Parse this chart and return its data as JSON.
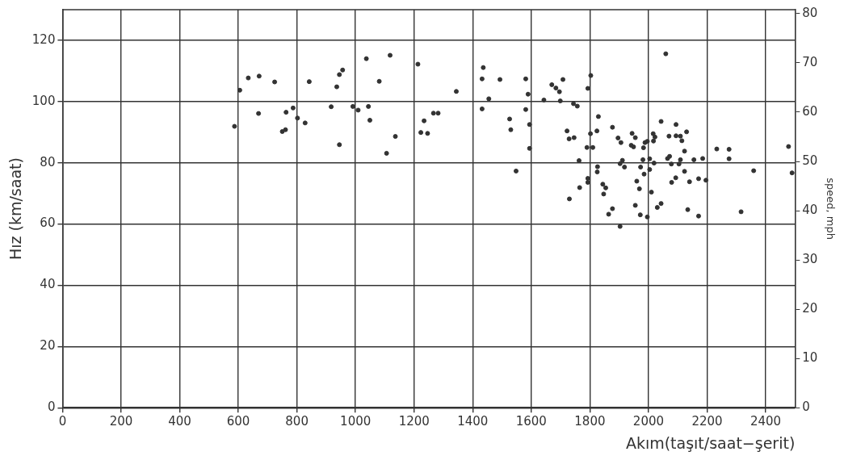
{
  "chart_data": {
    "type": "scatter",
    "xlabel": "Akım(taşıt/saat−şerit)",
    "ylabel": "Hız (km/saat)",
    "y2label": "speed, mph",
    "xlim": [
      0,
      2500
    ],
    "xticks": [
      0,
      200,
      400,
      600,
      800,
      1000,
      1200,
      1400,
      1600,
      1800,
      2000,
      2200,
      2400
    ],
    "ylim": [
      0,
      130
    ],
    "yticks": [
      0,
      20,
      40,
      60,
      80,
      100,
      120
    ],
    "y2lim": [
      0,
      80.8
    ],
    "y2ticks": [
      0,
      10,
      20,
      30,
      40,
      50,
      60,
      70,
      80
    ],
    "grid": true,
    "legend": false,
    "marker": "circle",
    "series": [
      {
        "color": "#333333",
        "x": [
          605,
          587,
          634,
          671,
          669,
          724,
          750,
          761,
          763,
          787,
          802,
          828,
          842,
          917,
          936,
          945,
          956,
          945,
          991,
          1009,
          1037,
          1044,
          1049,
          1081,
          1118,
          1106,
          1136,
          1213,
          1223,
          1234,
          1246,
          1266,
          1282,
          1344,
          1436,
          1432,
          1455,
          1432,
          1493,
          1526,
          1530,
          1548,
          1581,
          1589,
          1581,
          1594,
          1594,
          1643,
          1670,
          1684,
          1696,
          1708,
          1699,
          1744,
          1757,
          1722,
          1729,
          1746,
          1763,
          1730,
          1765,
          1793,
          1803,
          1793,
          1793,
          1802,
          1810,
          1790,
          1829,
          1824,
          1826,
          1825,
          1844,
          1854,
          1847,
          1877,
          1896,
          1906,
          1911,
          1903,
          1918,
          1877,
          1864,
          1903,
          1944,
          1955,
          1941,
          1949,
          1981,
          1973,
          1983,
          1988,
          1996,
          1960,
          1969,
          1985,
          1955,
          1972,
          1996,
          2004,
          2004,
          2010,
          2016,
          2022,
          2017,
          2019,
          2043,
          2030,
          2043,
          2059,
          2070,
          2065,
          2072,
          2078,
          2079,
          2094,
          2094,
          2093,
          2109,
          2114,
          2109,
          2104,
          2123,
          2123,
          2130,
          2140,
          2134,
          2155,
          2171,
          2171,
          2185,
          2196,
          2233,
          2275,
          2275,
          2359,
          2316,
          2478,
          2490
        ],
        "values": [
          103.7,
          91.9,
          107.7,
          108.3,
          96.1,
          106.4,
          90.2,
          90.8,
          96.5,
          97.9,
          94.6,
          93.0,
          106.5,
          98.3,
          104.8,
          108.8,
          110.3,
          85.9,
          98.4,
          97.2,
          114.0,
          98.4,
          93.9,
          106.6,
          115.1,
          83.1,
          88.6,
          112.2,
          89.9,
          93.7,
          89.6,
          96.2,
          96.2,
          103.3,
          111.1,
          107.4,
          100.9,
          97.6,
          107.2,
          94.3,
          90.8,
          77.3,
          107.4,
          102.4,
          97.4,
          92.5,
          84.7,
          100.5,
          105.5,
          104.4,
          103.2,
          107.2,
          100.2,
          99.3,
          98.5,
          90.4,
          87.8,
          88.2,
          80.7,
          68.2,
          71.9,
          104.3,
          108.5,
          74.9,
          73.6,
          89.5,
          85.0,
          85.0,
          95.1,
          90.4,
          78.7,
          77.0,
          73.0,
          71.8,
          69.8,
          91.6,
          88.1,
          86.6,
          80.8,
          79.7,
          78.6,
          65.0,
          63.2,
          59.2,
          89.6,
          88.2,
          85.7,
          85.2,
          81.0,
          78.6,
          84.9,
          86.6,
          87.0,
          74.0,
          71.5,
          76.3,
          66.1,
          63.0,
          62.3,
          81.3,
          77.8,
          70.4,
          89.5,
          88.4,
          87.1,
          79.9,
          93.5,
          65.4,
          66.7,
          115.6,
          88.7,
          81.4,
          82.1,
          79.6,
          73.6,
          92.5,
          88.8,
          75.1,
          88.7,
          87.2,
          81.0,
          79.6,
          83.8,
          77.2,
          90.1,
          73.8,
          64.7,
          81.0,
          74.8,
          62.6,
          81.4,
          74.3,
          84.5,
          84.4,
          81.3,
          77.4,
          64.0,
          85.3,
          76.7
        ]
      }
    ]
  }
}
